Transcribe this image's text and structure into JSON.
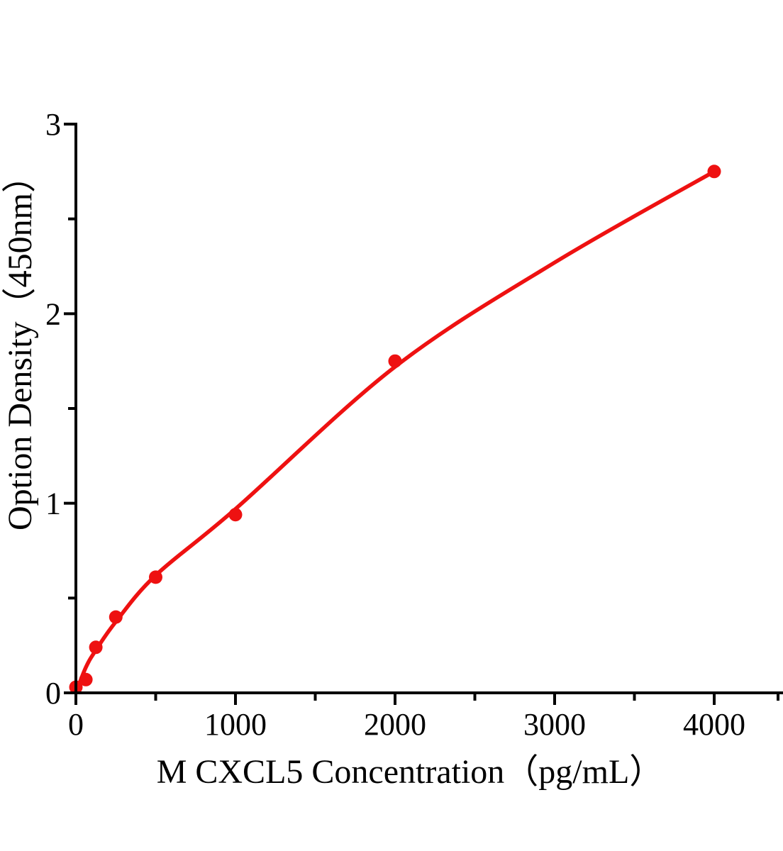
{
  "chart_data": {
    "type": "scatter",
    "title": "",
    "xlabel": "M CXCL5 Concentration（pg/mL）",
    "ylabel": "Option Density（450nm）",
    "series": [
      {
        "x": [
          0,
          62.5,
          125,
          250,
          500,
          1000,
          2000,
          4000
        ],
        "y": [
          0.03,
          0.07,
          0.24,
          0.4,
          0.61,
          0.94,
          1.75,
          2.75
        ],
        "marker": "circle",
        "color": "#ee1111"
      }
    ],
    "fit_curve": {
      "type": "smooth-power-fit",
      "points_xy": [
        [
          0,
          0
        ],
        [
          62.5,
          0.135
        ],
        [
          125,
          0.225
        ],
        [
          250,
          0.375
        ],
        [
          500,
          0.62
        ],
        [
          1000,
          0.97
        ],
        [
          2000,
          1.72
        ],
        [
          3000,
          2.27
        ],
        [
          4000,
          2.75
        ]
      ],
      "color": "#ee1111"
    },
    "xlim": [
      0,
      4430
    ],
    "ylim": [
      0,
      3
    ],
    "x_major_ticks": {
      "values": [
        0,
        1000,
        2000,
        3000,
        4000
      ],
      "labels": [
        "0",
        "1000",
        "2000",
        "3000",
        "4000"
      ]
    },
    "x_minor_ticks": [
      500,
      1500,
      2500,
      3500,
      4400
    ],
    "y_major_ticks": {
      "values": [
        0,
        1,
        2,
        3
      ],
      "labels": [
        "0",
        "1",
        "2",
        "3"
      ]
    },
    "y_minor_ticks": [
      0.5,
      1.5,
      2.5
    ],
    "axis_color": "#000000",
    "background": "#ffffff",
    "grid": false,
    "legend": null
  }
}
